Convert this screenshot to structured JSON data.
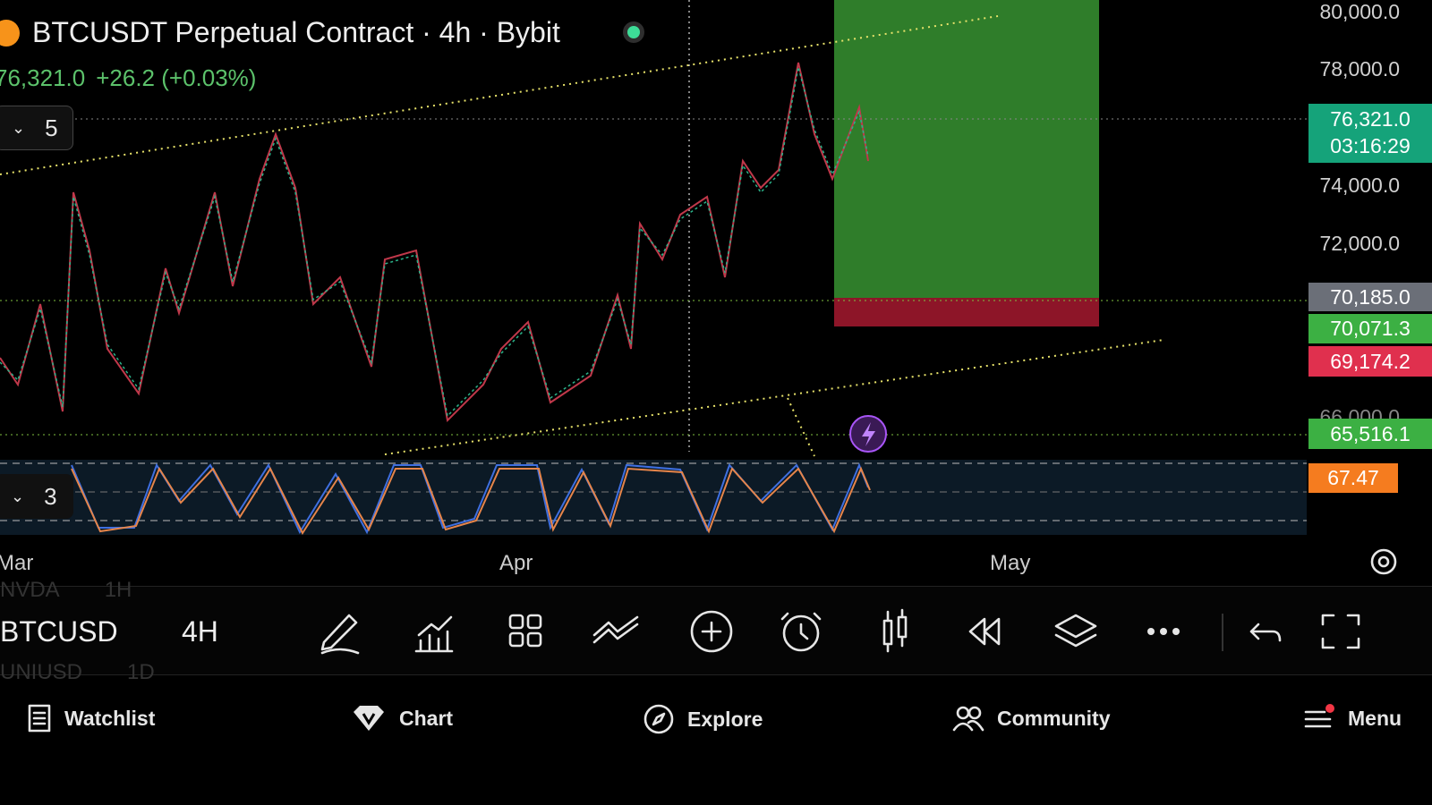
{
  "header": {
    "title": "BTCUSDT Perpetual Contract · 4h · Bybit",
    "price": "76,321.0",
    "change": "+26.2 (+0.03%)",
    "main_indicators": "5",
    "sub_indicators": "3"
  },
  "price_axis": [
    "80,000.0",
    "78,000.0",
    "74,000.0",
    "72,000.0",
    "66,000.0"
  ],
  "price_tags": [
    {
      "label": "76,321.0",
      "countdown": "03:16:29"
    },
    {
      "label": "70,185.0"
    },
    {
      "label": "70,071.3"
    },
    {
      "label": "69,174.2"
    },
    {
      "label": "65,516.1"
    },
    {
      "label": "67.47"
    }
  ],
  "time_axis": [
    "Mar",
    "Apr",
    "May"
  ],
  "toolbar": {
    "symbol": "BTCUSD",
    "interval": "4H",
    "ghost_above": [
      "NVDA",
      "1H"
    ],
    "ghost_below": [
      "UNIUSD",
      "1D"
    ]
  },
  "nav": [
    "Watchlist",
    "Chart",
    "Explore",
    "Community",
    "Menu"
  ]
}
